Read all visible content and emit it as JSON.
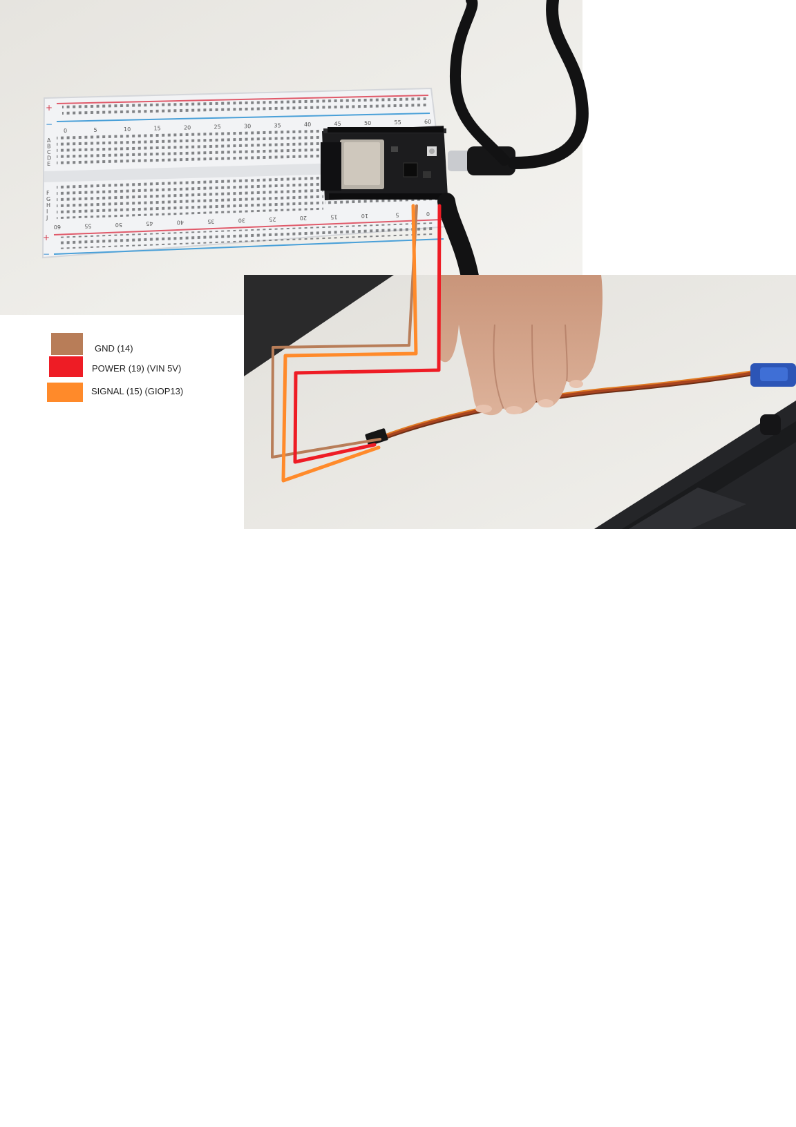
{
  "legend": [
    {
      "label": "GND (14)",
      "color": "#b87d58"
    },
    {
      "label": "POWER (19) (VIN 5V)",
      "color": "#ee1c25"
    },
    {
      "label": "SIGNAL (15) (GIOP13)",
      "color": "#ff8a2a"
    }
  ],
  "breadboard": {
    "top_numbers": [
      "0",
      "5",
      "10",
      "15",
      "20",
      "25",
      "30",
      "35",
      "40",
      "45",
      "50",
      "55",
      "60"
    ],
    "bottom_numbers": [
      "60",
      "55",
      "50",
      "45",
      "40",
      "35",
      "30",
      "25",
      "20",
      "15",
      "10",
      "5",
      "0"
    ],
    "top_rows": [
      "A",
      "B",
      "C",
      "D",
      "E"
    ],
    "bottom_rows": [
      "F",
      "G",
      "H",
      "I",
      "J"
    ],
    "rail_plus": "+",
    "rail_minus": "−"
  }
}
